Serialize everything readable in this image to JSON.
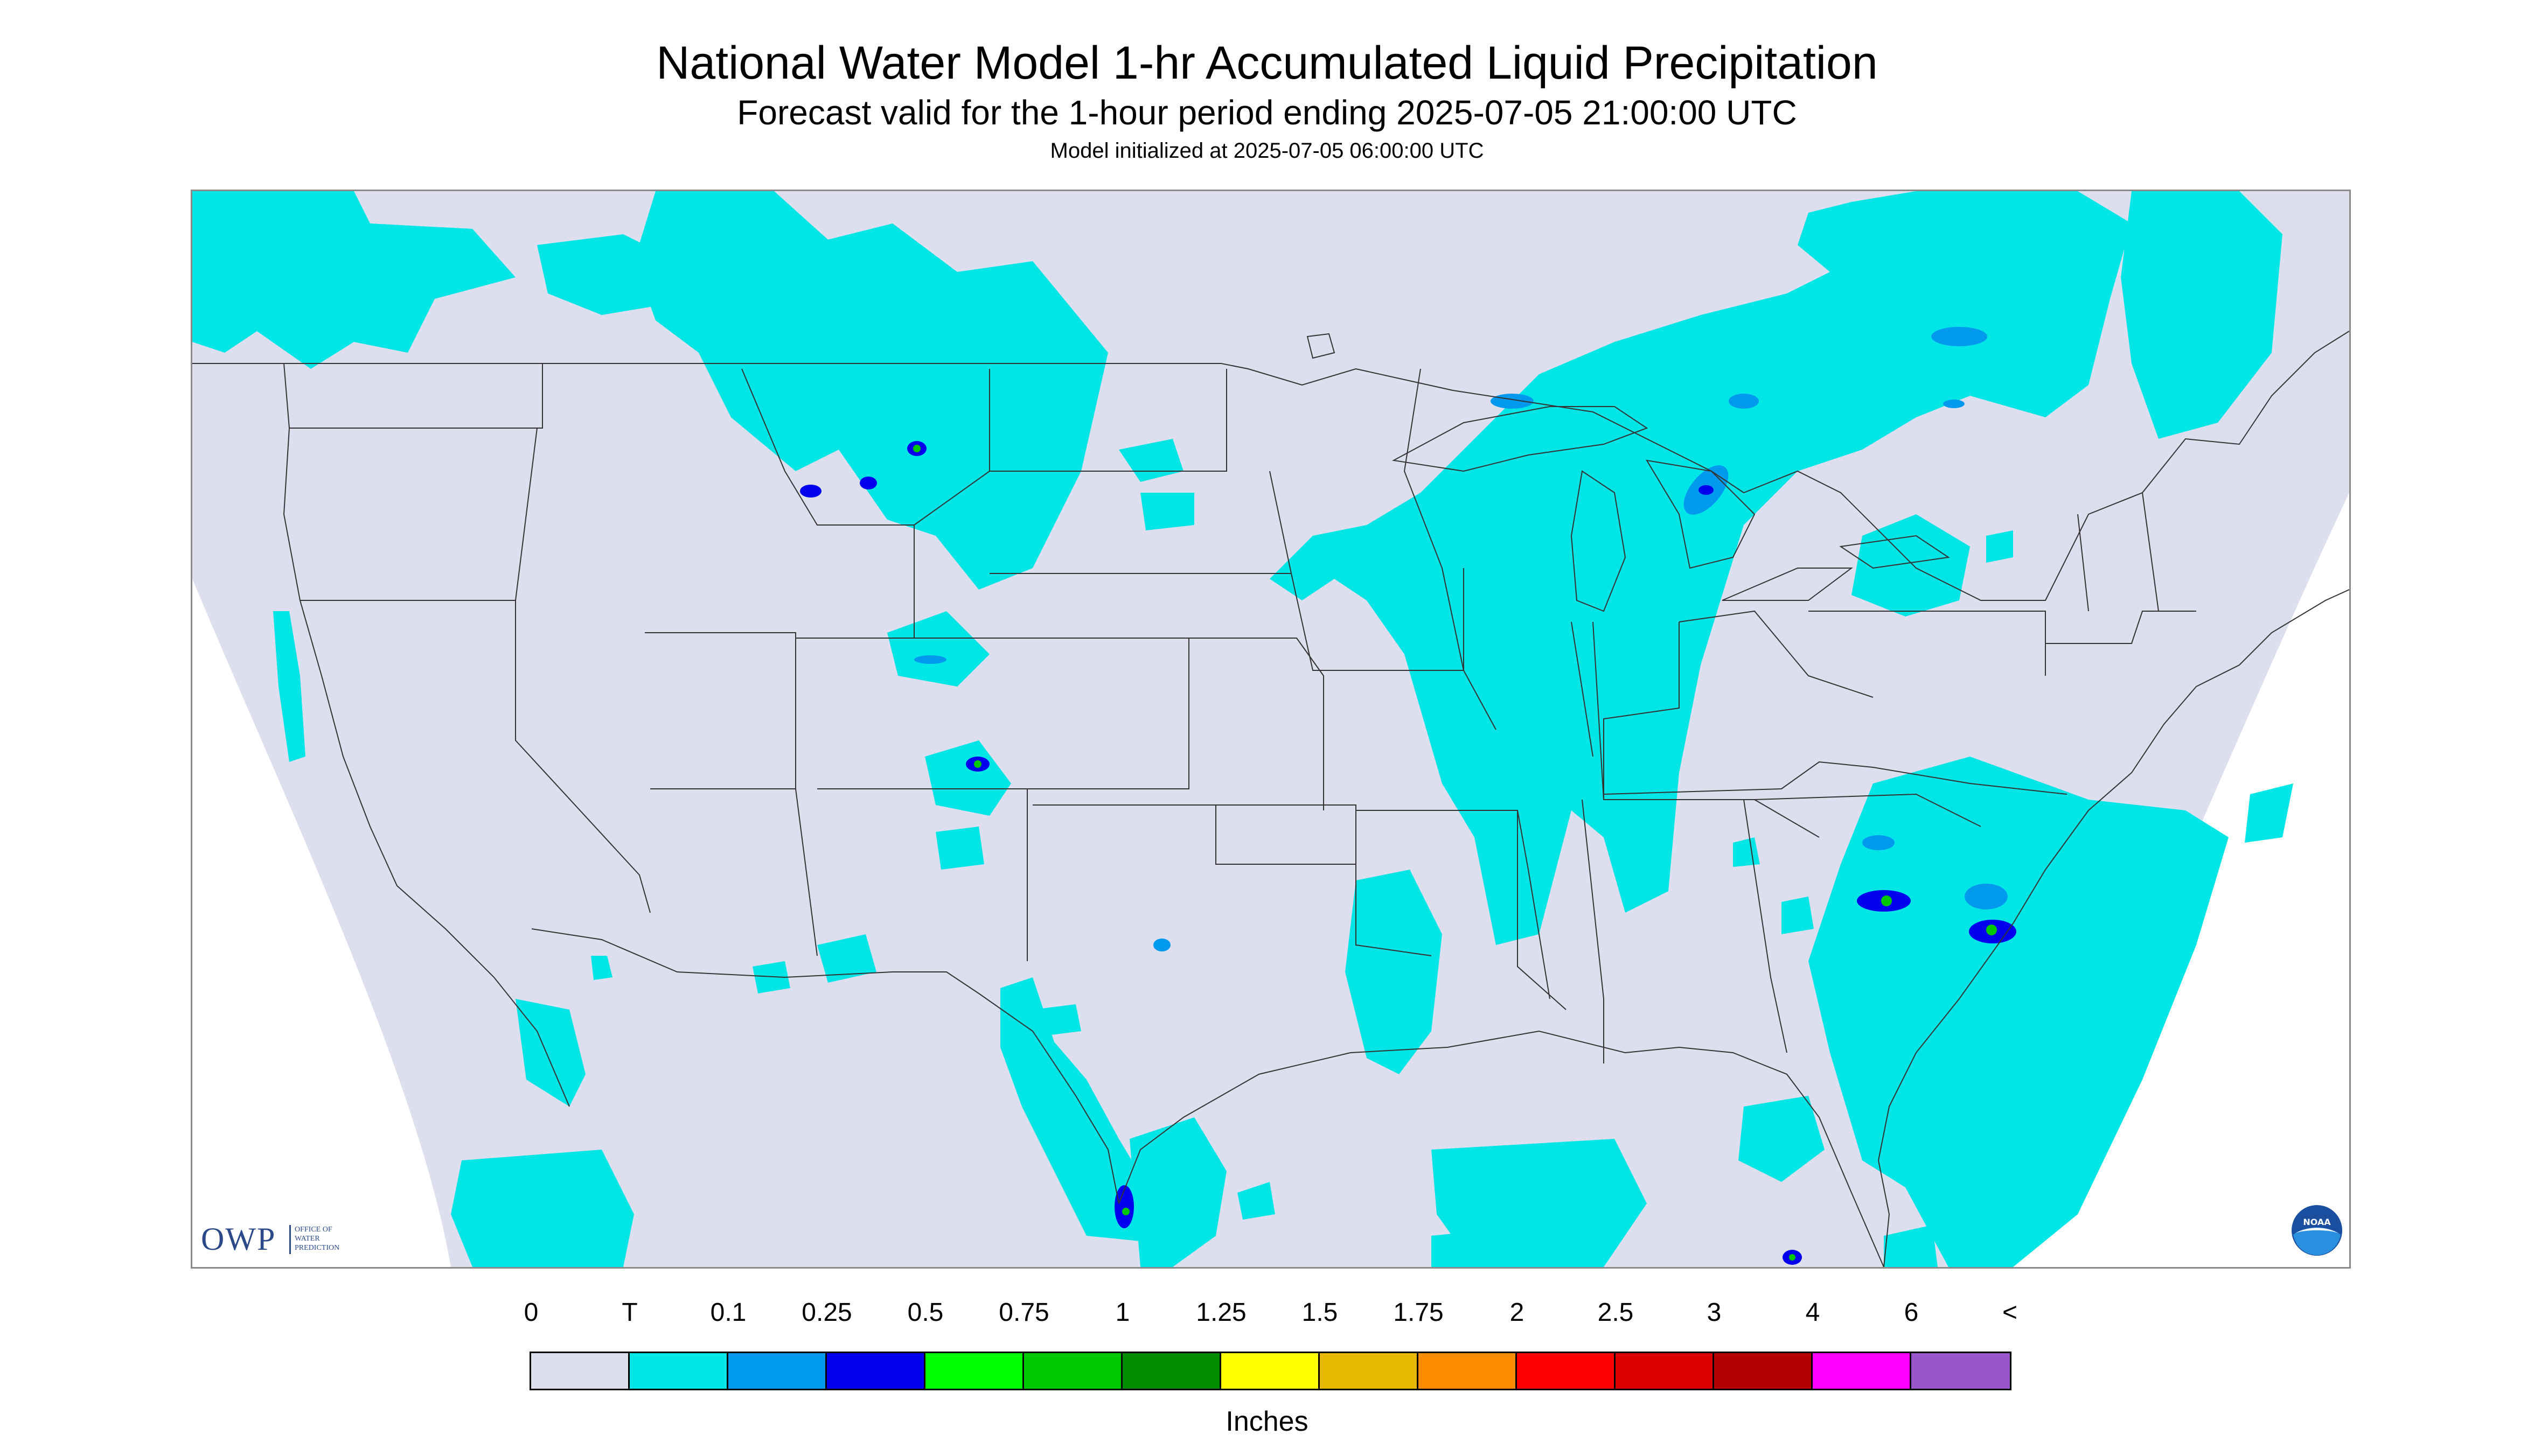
{
  "header": {
    "title": "National Water Model 1-hr Accumulated Liquid Precipitation",
    "subtitle": "Forecast valid for the 1-hour period ending 2025-07-05 21:00:00 UTC",
    "init_line": "Model initialized at 2025-07-05 06:00:00 UTC"
  },
  "logos": {
    "owp_letters": "OWP",
    "owp_line1": "OFFICE OF",
    "owp_line2": "WATER",
    "owp_line3": "PREDICTION",
    "noaa_text": "NOAA"
  },
  "colors": {
    "background": "#dddfee",
    "trace": "#00e5e5"
  },
  "legend": {
    "tick_labels": [
      "0",
      "T",
      "0.1",
      "0.25",
      "0.5",
      "0.75",
      "1",
      "1.25",
      "1.5",
      "1.75",
      "2",
      "2.5",
      "3",
      "4",
      "6",
      "<"
    ],
    "colors": [
      "#dddfee",
      "#00e5e5",
      "#0099ee",
      "#0000ee",
      "#00ff00",
      "#00c800",
      "#008c00",
      "#ffff00",
      "#e6b800",
      "#ff8c00",
      "#ff0000",
      "#dc0000",
      "#b40000",
      "#ff00ff",
      "#9955cc"
    ],
    "units": "Inches"
  }
}
